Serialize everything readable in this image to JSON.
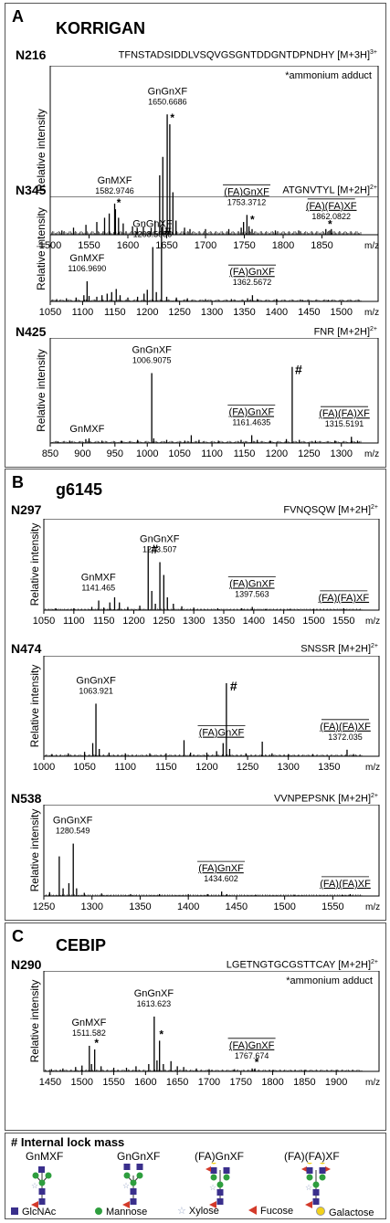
{
  "panels": [
    {
      "label": "A",
      "title": "KORRIGAN"
    },
    {
      "label": "B",
      "title": "g6145"
    },
    {
      "label": "C",
      "title": "CEBIP"
    }
  ],
  "chart_data": [
    {
      "type": "line",
      "site": "N216",
      "peptide": "TFNSTADSIDDLVSQVGSGNTDDGNTDPNDHY",
      "charge": "[M+3H]",
      "charge_sup": "3+",
      "note": "*ammonium adduct",
      "ylabel": "Relative intensity",
      "xlabel": "m/z",
      "xlim": [
        1500,
        1900
      ],
      "xticks": [
        1500,
        1550,
        1600,
        1650,
        1700,
        1750,
        1800,
        1850
      ],
      "peaks": [
        [
          1515,
          0.03
        ],
        [
          1530,
          0.05
        ],
        [
          1546,
          0.07
        ],
        [
          1560,
          0.09
        ],
        [
          1570,
          0.12
        ],
        [
          1576,
          0.15
        ],
        [
          1582.97,
          0.22
        ],
        [
          1584,
          0.18
        ],
        [
          1588,
          0.12
        ],
        [
          1594,
          0.08
        ],
        [
          1606,
          0.06
        ],
        [
          1612,
          0.05
        ],
        [
          1620,
          0.06
        ],
        [
          1630,
          0.05
        ],
        [
          1635,
          0.1
        ],
        [
          1641,
          0.42
        ],
        [
          1645,
          0.55
        ],
        [
          1650.67,
          0.85
        ],
        [
          1654,
          0.78
        ],
        [
          1658,
          0.3
        ],
        [
          1662,
          0.1
        ],
        [
          1673,
          0.05
        ],
        [
          1680,
          0.04
        ],
        [
          1700,
          0.04
        ],
        [
          1730,
          0.04
        ],
        [
          1746,
          0.05
        ],
        [
          1749,
          0.09
        ],
        [
          1753.37,
          0.14
        ],
        [
          1756,
          0.06
        ],
        [
          1760,
          0.04
        ],
        [
          1790,
          0.03
        ],
        [
          1820,
          0.03
        ],
        [
          1855,
          0.04
        ],
        [
          1860,
          0.03
        ],
        [
          1862.08,
          0.04
        ]
      ],
      "labels": [
        {
          "glycan": "GnMXF",
          "mz": "1582.9746",
          "x": 1583,
          "underline": false
        },
        {
          "glycan": "GnGnXF",
          "mz": "1650.6686",
          "x": 1651,
          "underline": false
        },
        {
          "glycan": "(FA)GnXF",
          "mz": "1753.3712",
          "x": 1753,
          "underline": true
        },
        {
          "glycan": "(FA)(FA)XF",
          "mz": "1862.0822",
          "x": 1862,
          "underline": true
        }
      ],
      "marks": [
        {
          "symbol": "*",
          "x": 1586
        },
        {
          "symbol": "*",
          "x": 1655
        },
        {
          "symbol": "*",
          "x": 1758
        },
        {
          "symbol": "*",
          "x": 1858
        }
      ]
    },
    {
      "type": "line",
      "site": "N345",
      "peptide": "ATGNVTYL",
      "charge": "[M+2H]",
      "charge_sup": "2+",
      "ylabel": "Relative intensity",
      "xlabel": "m/z",
      "xlim": [
        1050,
        1530
      ],
      "xticks": [
        1050,
        1100,
        1150,
        1200,
        1250,
        1300,
        1350,
        1400,
        1450,
        1500
      ],
      "peaks": [
        [
          1060,
          0.03
        ],
        [
          1075,
          0.04
        ],
        [
          1090,
          0.05
        ],
        [
          1102,
          0.08
        ],
        [
          1106.97,
          0.26
        ],
        [
          1110,
          0.07
        ],
        [
          1122,
          0.06
        ],
        [
          1130,
          0.08
        ],
        [
          1138,
          0.1
        ],
        [
          1145,
          0.12
        ],
        [
          1152,
          0.16
        ],
        [
          1158,
          0.08
        ],
        [
          1170,
          0.05
        ],
        [
          1185,
          0.06
        ],
        [
          1195,
          0.1
        ],
        [
          1200,
          0.15
        ],
        [
          1208.51,
          0.7
        ],
        [
          1214,
          0.12
        ],
        [
          1222,
          0.96
        ],
        [
          1230,
          0.06
        ],
        [
          1245,
          0.05
        ],
        [
          1262,
          0.04
        ],
        [
          1290,
          0.03
        ],
        [
          1330,
          0.03
        ],
        [
          1355,
          0.04
        ],
        [
          1362.57,
          0.08
        ],
        [
          1370,
          0.03
        ],
        [
          1400,
          0.03
        ],
        [
          1440,
          0.02
        ],
        [
          1480,
          0.02
        ]
      ],
      "labels": [
        {
          "glycan": "GnMXF",
          "mz": "1106.9690",
          "x": 1107,
          "underline": false
        },
        {
          "glycan": "GnGnXF",
          "mz": "1208.5086",
          "x": 1208,
          "underline": false
        },
        {
          "glycan": "(FA)GnXF",
          "mz": "1362.5672",
          "x": 1362,
          "underline": true
        }
      ],
      "marks": [
        {
          "symbol": "#",
          "x": 1222
        }
      ]
    },
    {
      "type": "line",
      "site": "N425",
      "peptide": "FNR",
      "charge": "[M+2H]",
      "charge_sup": "2+",
      "ylabel": "Relative intensity",
      "xlabel": "m/z",
      "xlim": [
        850,
        1330
      ],
      "xticks": [
        850,
        900,
        950,
        1000,
        1050,
        1100,
        1150,
        1200,
        1250,
        1300
      ],
      "peaks": [
        [
          862,
          0.02
        ],
        [
          880,
          0.03
        ],
        [
          905,
          0.05
        ],
        [
          910,
          0.06
        ],
        [
          930,
          0.03
        ],
        [
          960,
          0.03
        ],
        [
          985,
          0.04
        ],
        [
          1006.91,
          0.9
        ],
        [
          1010,
          0.06
        ],
        [
          1030,
          0.04
        ],
        [
          1058,
          0.03
        ],
        [
          1068,
          0.1
        ],
        [
          1080,
          0.04
        ],
        [
          1110,
          0.03
        ],
        [
          1145,
          0.04
        ],
        [
          1161.46,
          0.1
        ],
        [
          1170,
          0.04
        ],
        [
          1190,
          0.03
        ],
        [
          1215,
          0.05
        ],
        [
          1224,
          0.98
        ],
        [
          1235,
          0.04
        ],
        [
          1260,
          0.03
        ],
        [
          1290,
          0.03
        ],
        [
          1315.52,
          0.08
        ],
        [
          1325,
          0.03
        ]
      ],
      "labels": [
        {
          "glycan": "GnMXF",
          "mz": "",
          "x": 907,
          "underline": false
        },
        {
          "glycan": "GnGnXF",
          "mz": "1006.9075",
          "x": 1007,
          "underline": false
        },
        {
          "glycan": "(FA)GnXF",
          "mz": "1161.4635",
          "x": 1161,
          "underline": true
        },
        {
          "glycan": "(FA)(FA)XF",
          "mz": "1315.5191",
          "x": 1315,
          "underline": true
        }
      ],
      "marks": [
        {
          "symbol": "#",
          "x": 1224
        }
      ]
    },
    {
      "type": "line",
      "site": "N297",
      "peptide": "FVNQSQW",
      "charge": "[M+2H]",
      "charge_sup": "2+",
      "ylabel": "Relative intensity",
      "xlabel": "m/z",
      "xlim": [
        1050,
        1580
      ],
      "xticks": [
        1050,
        1100,
        1150,
        1200,
        1250,
        1300,
        1350,
        1400,
        1450,
        1500,
        1550
      ],
      "peaks": [
        [
          1070,
          0.03
        ],
        [
          1100,
          0.03
        ],
        [
          1130,
          0.05
        ],
        [
          1141.47,
          0.15
        ],
        [
          1150,
          0.04
        ],
        [
          1160,
          0.12
        ],
        [
          1168,
          0.2
        ],
        [
          1176,
          0.12
        ],
        [
          1190,
          0.05
        ],
        [
          1210,
          0.07
        ],
        [
          1224,
          1.0
        ],
        [
          1230,
          0.3
        ],
        [
          1236,
          0.1
        ],
        [
          1243.51,
          0.75
        ],
        [
          1250,
          0.55
        ],
        [
          1256,
          0.2
        ],
        [
          1266,
          0.1
        ],
        [
          1280,
          0.06
        ],
        [
          1300,
          0.04
        ],
        [
          1340,
          0.03
        ],
        [
          1380,
          0.03
        ],
        [
          1397.56,
          0.05
        ],
        [
          1420,
          0.02
        ],
        [
          1460,
          0.02
        ],
        [
          1500,
          0.02
        ],
        [
          1550,
          0.03
        ]
      ],
      "labels": [
        {
          "glycan": "GnMXF",
          "mz": "1141.465",
          "x": 1141,
          "underline": false
        },
        {
          "glycan": "GnGnXF",
          "mz": "1243.507",
          "x": 1243,
          "underline": false
        },
        {
          "glycan": "(FA)GnXF",
          "mz": "1397.563",
          "x": 1397,
          "underline": true
        },
        {
          "glycan": "(FA)(FA)XF",
          "mz": "",
          "x": 1550,
          "underline": true
        }
      ],
      "marks": [
        {
          "symbol": "#",
          "x": 1224
        }
      ]
    },
    {
      "type": "line",
      "site": "N474",
      "peptide": "SNSSR",
      "charge": "[M+2H]",
      "charge_sup": "2+",
      "ylabel": "Relative intensity",
      "xlabel": "m/z",
      "xlim": [
        1000,
        1390
      ],
      "xticks": [
        1000,
        1050,
        1100,
        1150,
        1200,
        1250,
        1300,
        1350
      ],
      "peaks": [
        [
          1010,
          0.03
        ],
        [
          1030,
          0.04
        ],
        [
          1050,
          0.06
        ],
        [
          1060,
          0.18
        ],
        [
          1063.92,
          0.72
        ],
        [
          1068,
          0.1
        ],
        [
          1080,
          0.05
        ],
        [
          1100,
          0.04
        ],
        [
          1130,
          0.04
        ],
        [
          1150,
          0.04
        ],
        [
          1172,
          0.22
        ],
        [
          1180,
          0.05
        ],
        [
          1200,
          0.05
        ],
        [
          1212,
          0.07
        ],
        [
          1220,
          0.18
        ],
        [
          1224,
          1.0
        ],
        [
          1228,
          0.1
        ],
        [
          1248,
          0.04
        ],
        [
          1268,
          0.2
        ],
        [
          1280,
          0.04
        ],
        [
          1300,
          0.03
        ],
        [
          1330,
          0.03
        ],
        [
          1372.04,
          0.09
        ],
        [
          1380,
          0.03
        ]
      ],
      "labels": [
        {
          "glycan": "GnGnXF",
          "mz": "1063.921",
          "x": 1064,
          "underline": false
        },
        {
          "glycan": "(FA)GnXF",
          "mz": "",
          "x": 1218,
          "underline": true
        },
        {
          "glycan": "(FA)(FA)XF",
          "mz": "1372.035",
          "x": 1372,
          "underline": true
        }
      ],
      "marks": [
        {
          "symbol": "#",
          "x": 1225
        }
      ]
    },
    {
      "type": "line",
      "site": "N538",
      "peptide": "VVNPEPSNK",
      "charge": "[M+2H]",
      "charge_sup": "2+",
      "ylabel": "Relative intensity",
      "xlabel": "m/z",
      "xlim": [
        1250,
        1580
      ],
      "xticks": [
        1250,
        1300,
        1350,
        1400,
        1450,
        1500,
        1550
      ],
      "peaks": [
        [
          1256,
          0.06
        ],
        [
          1266,
          0.62
        ],
        [
          1270,
          0.12
        ],
        [
          1276,
          0.2
        ],
        [
          1280.55,
          0.82
        ],
        [
          1284,
          0.12
        ],
        [
          1292,
          0.05
        ],
        [
          1310,
          0.04
        ],
        [
          1340,
          0.03
        ],
        [
          1370,
          0.03
        ],
        [
          1400,
          0.03
        ],
        [
          1420,
          0.03
        ],
        [
          1434.6,
          0.07
        ],
        [
          1440,
          0.03
        ],
        [
          1470,
          0.02
        ],
        [
          1510,
          0.02
        ],
        [
          1560,
          0.02
        ],
        [
          1568,
          0.03
        ]
      ],
      "labels": [
        {
          "glycan": "GnGnXF",
          "mz": "1280.549",
          "x": 1280,
          "underline": false
        },
        {
          "glycan": "(FA)GnXF",
          "mz": "1434.602",
          "x": 1434,
          "underline": true
        },
        {
          "glycan": "(FA)(FA)XF",
          "mz": "",
          "x": 1565,
          "underline": true
        }
      ],
      "marks": []
    },
    {
      "type": "line",
      "site": "N290",
      "peptide": "LGETNGTGCGSTTCAY",
      "charge": "[M+2H]",
      "charge_sup": "2+",
      "note": "*ammonium adduct",
      "ylabel": "Relative intensity",
      "xlabel": "m/z",
      "xlim": [
        1440,
        1940
      ],
      "xticks": [
        1450,
        1500,
        1550,
        1600,
        1650,
        1700,
        1750,
        1800,
        1850,
        1900
      ],
      "peaks": [
        [
          1452,
          0.03
        ],
        [
          1470,
          0.04
        ],
        [
          1490,
          0.06
        ],
        [
          1500,
          0.08
        ],
        [
          1511.58,
          0.35
        ],
        [
          1515,
          0.1
        ],
        [
          1520,
          0.3
        ],
        [
          1530,
          0.07
        ],
        [
          1550,
          0.05
        ],
        [
          1570,
          0.05
        ],
        [
          1585,
          0.07
        ],
        [
          1605,
          0.1
        ],
        [
          1613.62,
          0.75
        ],
        [
          1618,
          0.15
        ],
        [
          1622,
          0.42
        ],
        [
          1628,
          0.1
        ],
        [
          1640,
          0.14
        ],
        [
          1650,
          0.07
        ],
        [
          1660,
          0.06
        ],
        [
          1680,
          0.04
        ],
        [
          1700,
          0.03
        ],
        [
          1740,
          0.03
        ],
        [
          1767.67,
          0.04
        ],
        [
          1772,
          0.04
        ],
        [
          1800,
          0.02
        ],
        [
          1850,
          0.02
        ],
        [
          1900,
          0.02
        ]
      ],
      "labels": [
        {
          "glycan": "GnMXF",
          "mz": "1511.582",
          "x": 1511,
          "underline": false
        },
        {
          "glycan": "GnGnXF",
          "mz": "1613.623",
          "x": 1613,
          "underline": false
        },
        {
          "glycan": "(FA)GnXF",
          "mz": "1767.674",
          "x": 1767,
          "underline": true
        }
      ],
      "marks": [
        {
          "symbol": "*",
          "x": 1520
        },
        {
          "symbol": "*",
          "x": 1622
        },
        {
          "symbol": "*",
          "x": 1772
        }
      ]
    }
  ],
  "legend": {
    "lockmass": "# Internal lock mass",
    "glycans": [
      "GnMXF",
      "GnGnXF",
      "(FA)GnXF",
      "(FA)(FA)XF"
    ],
    "keys": [
      {
        "label": "GlcNAc",
        "symbol": "square",
        "color": "#3a2f8c"
      },
      {
        "label": "Mannose",
        "symbol": "circle",
        "color": "#2e9e3e"
      },
      {
        "label": "Xylose",
        "symbol": "star",
        "color": "#9aa8c8"
      },
      {
        "label": "Fucose",
        "symbol": "triangle",
        "color": "#d33a2a"
      },
      {
        "label": "Galactose",
        "symbol": "circle",
        "color": "#f2d21a"
      }
    ]
  }
}
